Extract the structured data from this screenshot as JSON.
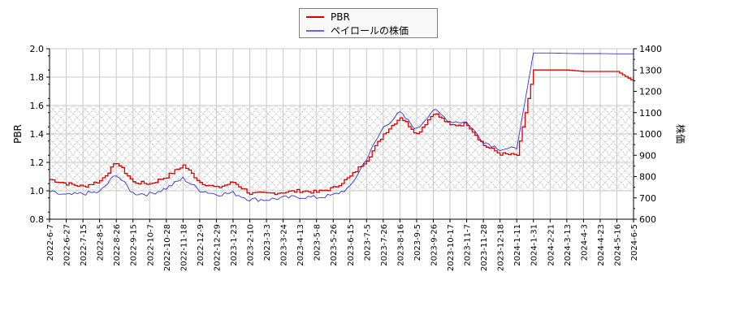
{
  "legend": {
    "items": [
      {
        "label": "PBR",
        "color": "#dd0000"
      },
      {
        "label": "ペイロールの株価",
        "color": "#3333dd"
      }
    ]
  },
  "axes": {
    "left_label": "PBR",
    "right_label": "株価",
    "left_ticks": [
      "2.0",
      "1.8",
      "1.6",
      "1.4",
      "1.2",
      "1.0",
      "0.8"
    ],
    "right_ticks": [
      "1400",
      "1300",
      "1200",
      "1100",
      "1000",
      "900",
      "800",
      "700",
      "600"
    ]
  },
  "colors": {
    "pbr": "#dd0000",
    "price": "#3333dd",
    "grid": "#c8c8c8",
    "hatch": "#b0b0b0"
  },
  "chart_data": {
    "type": "line",
    "title": "",
    "xlabel": "",
    "ylabel": "PBR",
    "y2label": "株価",
    "ylim": [
      0.8,
      2.0
    ],
    "y2lim": [
      600,
      1400
    ],
    "grid": true,
    "legend_position": "top-center",
    "shaded_band": {
      "axis": "left",
      "from": 1.0,
      "to": 1.6,
      "style": "crosshatch"
    },
    "categories": [
      "2022-6-7",
      "2022-6-27",
      "2022-7-15",
      "2022-8-5",
      "2022-8-26",
      "2022-9-15",
      "2022-10-7",
      "2022-10-28",
      "2022-11-18",
      "2022-12-9",
      "2022-12-29",
      "2023-1-23",
      "2023-2-10",
      "2023-3-3",
      "2023-3-24",
      "2023-4-13",
      "2023-5-8",
      "2023-5-26",
      "2023-6-15",
      "2023-7-5",
      "2023-7-26",
      "2023-8-16",
      "2023-9-5",
      "2023-9-26",
      "2023-10-17",
      "2023-11-7",
      "2023-11-28",
      "2023-12-18",
      "2024-1-11",
      "2024-1-31",
      "2024-2-21",
      "2024-3-13",
      "2024-4-3",
      "2024-4-23",
      "2024-5-16",
      "2024-6-5"
    ],
    "series": [
      {
        "name": "PBR",
        "axis": "left",
        "values": [
          1.08,
          1.05,
          1.03,
          1.07,
          1.2,
          1.06,
          1.05,
          1.1,
          1.18,
          1.06,
          1.02,
          1.06,
          0.98,
          0.98,
          0.99,
          1.0,
          0.99,
          1.02,
          1.1,
          1.22,
          1.4,
          1.52,
          1.4,
          1.55,
          1.46,
          1.47,
          1.32,
          1.26,
          1.25,
          1.85,
          1.85,
          1.85,
          1.84,
          1.84,
          1.84,
          1.77
        ]
      },
      {
        "name": "ペイロールの株価",
        "axis": "right",
        "values": [
          727,
          712,
          720,
          727,
          812,
          722,
          718,
          745,
          792,
          737,
          717,
          723,
          693,
          692,
          700,
          705,
          702,
          712,
          748,
          885,
          1030,
          1100,
          1020,
          1115,
          1060,
          1055,
          965,
          930,
          930,
          1380,
          1380,
          1378,
          1377,
          1377,
          1376,
          1376
        ]
      }
    ]
  }
}
